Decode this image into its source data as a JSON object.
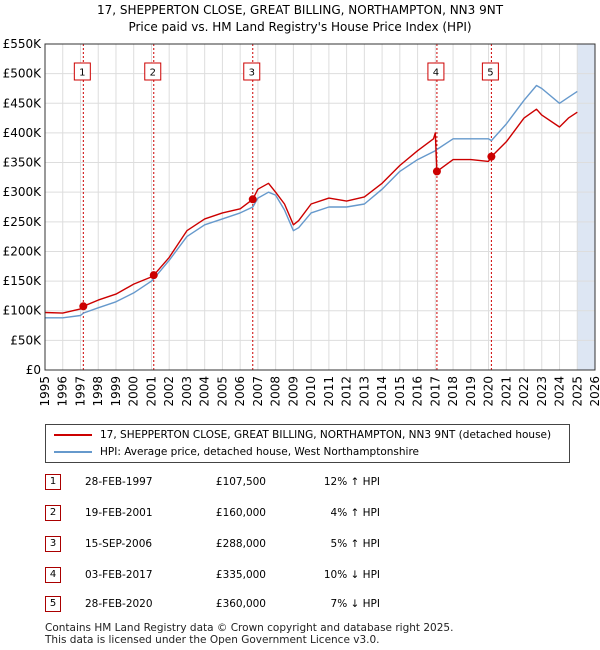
{
  "title_line1": "17, SHEPPERTON CLOSE, GREAT BILLING, NORTHAMPTON, NN3 9NT",
  "title_line2": "Price paid vs. HM Land Registry's House Price Index (HPI)",
  "legend": {
    "property_label": "17, SHEPPERTON CLOSE, GREAT BILLING, NORTHAMPTON, NN3 9NT (detached house)",
    "hpi_label": "HPI: Average price, detached house, West Northamptonshire"
  },
  "transactions": [
    {
      "num": "1",
      "date": "28-FEB-1997",
      "price": "£107,500",
      "hpi_change": "12% ↑ HPI"
    },
    {
      "num": "2",
      "date": "19-FEB-2001",
      "price": "£160,000",
      "hpi_change": "4% ↑ HPI"
    },
    {
      "num": "3",
      "date": "15-SEP-2006",
      "price": "£288,000",
      "hpi_change": "5% ↑ HPI"
    },
    {
      "num": "4",
      "date": "03-FEB-2017",
      "price": "£335,000",
      "hpi_change": "10% ↓ HPI"
    },
    {
      "num": "5",
      "date": "28-FEB-2020",
      "price": "£360,000",
      "hpi_change": "7% ↓ HPI"
    }
  ],
  "footer_line1": "Contains HM Land Registry data © Crown copyright and database right 2025.",
  "footer_line2": "This data is licensed under the Open Government Licence v3.0.",
  "colors": {
    "property": "#cc0000",
    "hpi": "#6699cc",
    "band": "#dde6f3",
    "grid": "#dddddd",
    "marker_box": "#cc0000"
  },
  "chart_data": {
    "type": "line",
    "title": "17, SHEPPERTON CLOSE, GREAT BILLING, NORTHAMPTON, NN3 9NT — Price paid vs. HM Land Registry's House Price Index (HPI)",
    "xlim": [
      1995,
      2026
    ],
    "ylim": [
      0,
      550000
    ],
    "x_ticks": [
      "1995",
      "1996",
      "1997",
      "1998",
      "1999",
      "2000",
      "2001",
      "2002",
      "2003",
      "2004",
      "2005",
      "2006",
      "2007",
      "2008",
      "2009",
      "2010",
      "2011",
      "2012",
      "2013",
      "2014",
      "2015",
      "2016",
      "2017",
      "2018",
      "2019",
      "2020",
      "2021",
      "2022",
      "2023",
      "2024",
      "2025",
      "2026"
    ],
    "y_ticks": [
      {
        "value": 0,
        "label": "£0"
      },
      {
        "value": 50000,
        "label": "£50K"
      },
      {
        "value": 100000,
        "label": "£100K"
      },
      {
        "value": 150000,
        "label": "£150K"
      },
      {
        "value": 200000,
        "label": "£200K"
      },
      {
        "value": 250000,
        "label": "£250K"
      },
      {
        "value": 300000,
        "label": "£300K"
      },
      {
        "value": 350000,
        "label": "£350K"
      },
      {
        "value": 400000,
        "label": "£400K"
      },
      {
        "value": 450000,
        "label": "£450K"
      },
      {
        "value": 500000,
        "label": "£500K"
      },
      {
        "value": 550000,
        "label": "£550K"
      }
    ],
    "shaded_from": 2025.0,
    "sales": [
      {
        "label": "1",
        "x": 1997.16,
        "y": 107500
      },
      {
        "label": "2",
        "x": 2001.13,
        "y": 160000
      },
      {
        "label": "3",
        "x": 2006.71,
        "y": 288000
      },
      {
        "label": "4",
        "x": 2017.09,
        "y": 335000
      },
      {
        "label": "5",
        "x": 2020.16,
        "y": 360000
      }
    ],
    "series": [
      {
        "name": "HPI: Average price, detached house, West Northamptonshire",
        "x": [
          1995,
          1996,
          1997,
          1997.16,
          1998,
          1999,
          2000,
          2001,
          2001.13,
          2002,
          2003,
          2004,
          2005,
          2006,
          2006.71,
          2007,
          2007.6,
          2008,
          2008.5,
          2009,
          2009.3,
          2010,
          2011,
          2012,
          2013,
          2014,
          2015,
          2016,
          2017,
          2017.09,
          2018,
          2019,
          2020,
          2020.16,
          2021,
          2022,
          2022.7,
          2023,
          2024,
          2024.5,
          2025
        ],
        "values": [
          88000,
          88000,
          92000,
          96000,
          105000,
          115000,
          130000,
          150000,
          154000,
          185000,
          225000,
          245000,
          255000,
          265000,
          275000,
          290000,
          300000,
          295000,
          270000,
          235000,
          240000,
          265000,
          275000,
          275000,
          280000,
          305000,
          335000,
          355000,
          370000,
          372000,
          390000,
          390000,
          390000,
          387000,
          415000,
          455000,
          480000,
          475000,
          450000,
          460000,
          470000
        ]
      },
      {
        "name": "17, SHEPPERTON CLOSE, GREAT BILLING, NORTHAMPTON, NN3 9NT (detached house)",
        "x": [
          1995,
          1996,
          1997,
          1997.16,
          1998,
          1999,
          2000,
          2001,
          2001.13,
          2002,
          2003,
          2004,
          2005,
          2006,
          2006.71,
          2007,
          2007.6,
          2008,
          2008.5,
          2009,
          2009.3,
          2010,
          2011,
          2012,
          2013,
          2014,
          2015,
          2016,
          2016.9,
          2017.0,
          2017.09,
          2018,
          2019,
          2020,
          2020.16,
          2021,
          2022,
          2022.7,
          2023,
          2024,
          2024.5,
          2025
        ],
        "values": [
          97000,
          96000,
          103000,
          107500,
          118000,
          128000,
          145000,
          157000,
          160000,
          190000,
          235000,
          255000,
          265000,
          272000,
          288000,
          305000,
          315000,
          300000,
          280000,
          245000,
          252000,
          280000,
          290000,
          285000,
          292000,
          315000,
          345000,
          370000,
          390000,
          400000,
          335000,
          355000,
          355000,
          352000,
          360000,
          385000,
          425000,
          440000,
          430000,
          410000,
          425000,
          435000
        ]
      }
    ]
  }
}
